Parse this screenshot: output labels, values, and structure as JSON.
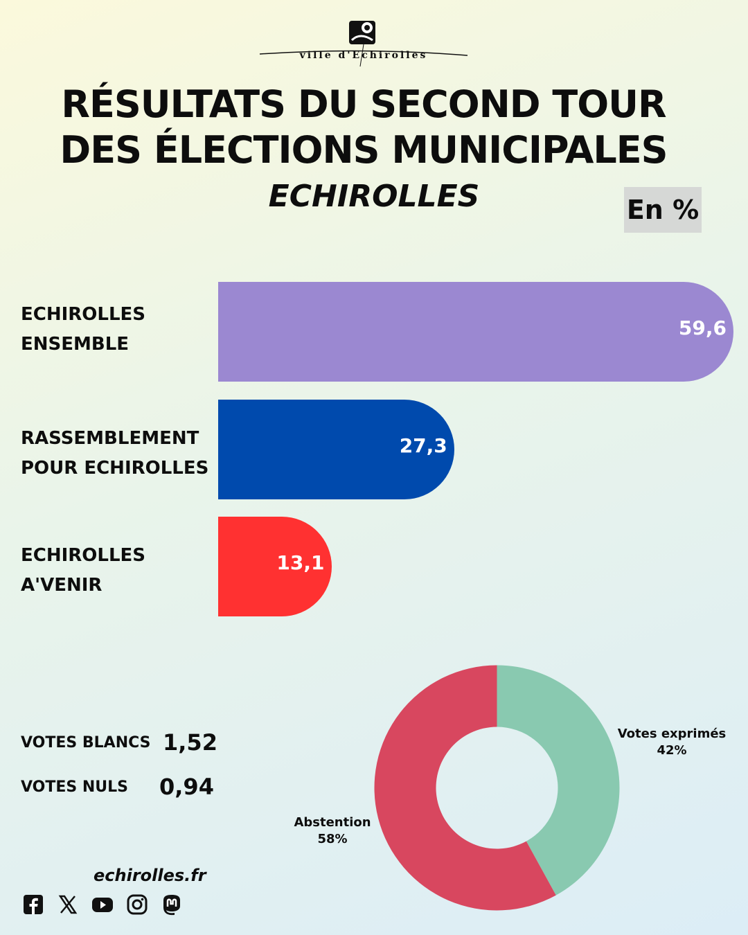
{
  "logo": {
    "text": "ville d'Echirolles"
  },
  "title_line1": "RÉSULTATS DU SECOND TOUR",
  "title_line2": "DES ÉLECTIONS MUNICIPALES",
  "subtitle": "ECHIROLLES",
  "unit_badge": "En %",
  "bars": [
    {
      "line1": "ECHIROLLES",
      "line2": "ENSEMBLE",
      "value_label": "59,6",
      "color": "#9b88d1"
    },
    {
      "line1": "RASSEMBLEMENT",
      "line2": "POUR ECHIROLLES",
      "value_label": "27,3",
      "color": "#004aad"
    },
    {
      "line1": "ECHIROLLES",
      "line2": "A'VENIR",
      "value_label": "13,1",
      "color": "#ff3131"
    }
  ],
  "stats": {
    "blancs_label": "VOTES BLANCS",
    "blancs_value": "1,52",
    "nuls_label": "VOTES NULS",
    "nuls_value": "0,94"
  },
  "donut": {
    "exprimes_label": "Votes exprimés",
    "exprimes_pct": "42%",
    "abstention_label": "Abstention",
    "abstention_pct": "58%"
  },
  "footer": {
    "site": "echirolles.fr"
  },
  "social_icons": [
    "facebook-icon",
    "x-icon",
    "youtube-icon",
    "instagram-icon",
    "mastodon-icon"
  ],
  "chart_data": [
    {
      "type": "bar",
      "categories": [
        "ECHIROLLES ENSEMBLE",
        "RASSEMBLEMENT POUR ECHIROLLES",
        "ECHIROLLES A'VENIR"
      ],
      "values": [
        59.6,
        27.3,
        13.1
      ],
      "colors": [
        "#9b88d1",
        "#004aad",
        "#ff3131"
      ],
      "orientation": "horizontal",
      "grid": false
    },
    {
      "type": "pie",
      "style": "donut",
      "labels": [
        "Votes exprimés",
        "Abstention"
      ],
      "values": [
        42,
        58
      ],
      "colors": [
        "#89c9b0",
        "#d8475f"
      ]
    }
  ]
}
